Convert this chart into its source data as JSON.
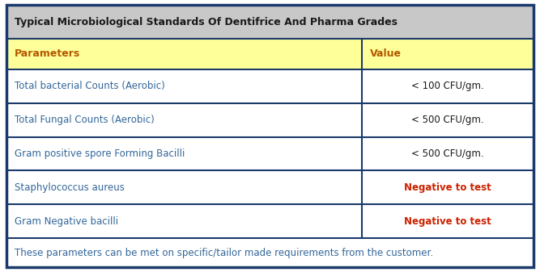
{
  "title": "Typical Microbiological Standards Of Dentifrice And Pharma Grades",
  "header": [
    "Parameters",
    "Value"
  ],
  "rows": [
    [
      "Total bacterial Counts (Aerobic)",
      "< 100 CFU/gm."
    ],
    [
      "Total Fungal Counts (Aerobic)",
      "< 500 CFU/gm."
    ],
    [
      "Gram positive spore Forming Bacilli",
      "< 500 CFU/gm."
    ],
    [
      "Staphylococcus aureus",
      "Negative to test"
    ],
    [
      "Gram Negative bacilli",
      "Negative to test"
    ]
  ],
  "footer": "These parameters can be met on specific/tailor made requirements from the customer.",
  "title_bg": "#c8c8c8",
  "header_bg": "#ffff99",
  "row_bg": "#ffffff",
  "border_color": "#1a3a6b",
  "title_color": "#1a1a1a",
  "header_text_color": "#b35a00",
  "row_left_color": "#336699",
  "row_right_color_cfu": "#1a1a1a",
  "row_right_color_neg": "#cc2200",
  "footer_color": "#336699",
  "col_split": 0.675,
  "outer_border_lw": 2.5,
  "inner_border_lw": 1.5,
  "title_fontsize": 9.0,
  "header_fontsize": 9.0,
  "row_fontsize": 8.5,
  "footer_fontsize": 8.5
}
